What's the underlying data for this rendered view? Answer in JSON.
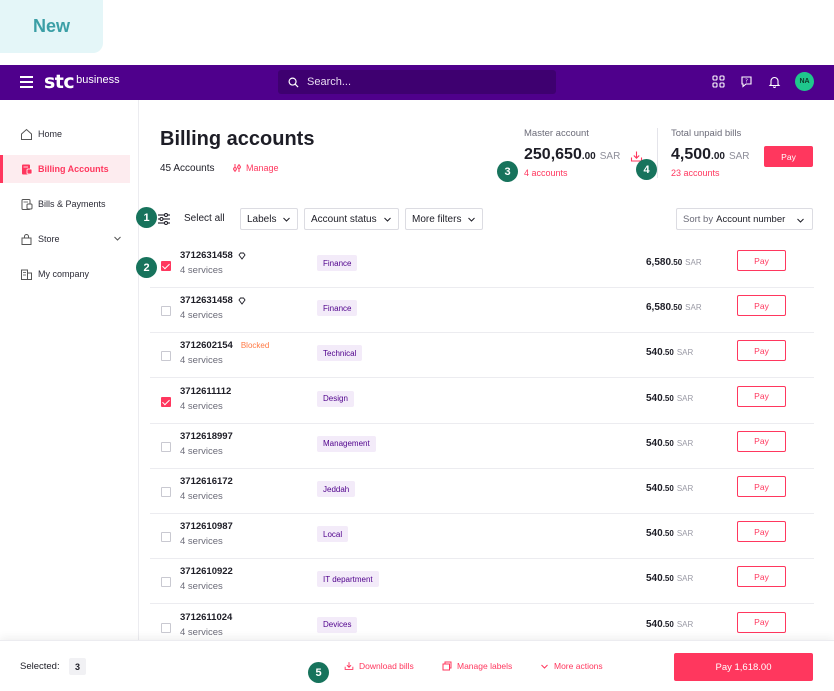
{
  "tag": {
    "label": "New"
  },
  "topbar": {
    "brand": "stc",
    "brand_sub": "business",
    "search_placeholder": "Search...",
    "avatar_initials": "NA",
    "bg_color": "#4f008c"
  },
  "sidebar": {
    "items": [
      {
        "label": "Home",
        "icon": "home-icon"
      },
      {
        "label": "Billing Accounts",
        "icon": "billing-icon",
        "active": true
      },
      {
        "label": "Bills & Payments",
        "icon": "bills-icon"
      },
      {
        "label": "Store",
        "icon": "store-icon"
      },
      {
        "label": "My company",
        "icon": "company-icon"
      }
    ]
  },
  "header": {
    "title": "Billing accounts",
    "count": "45 Accounts",
    "manage": "Manage"
  },
  "master": {
    "label": "Master account",
    "amount_int": "250,650",
    "amount_dec": ".00",
    "currency": "SAR",
    "accounts": "4 accounts"
  },
  "unpaid": {
    "label": "Total unpaid bills",
    "amount_int": "4,500",
    "amount_dec": ".00",
    "currency": "SAR",
    "accounts": "23 accounts",
    "pay": "Pay"
  },
  "filters": {
    "select_all": "Select all",
    "labels": "Labels",
    "status": "Account status",
    "more": "More filters",
    "sort_label": "Sort by",
    "sort_value": "Account number"
  },
  "badges": [
    "1",
    "2",
    "3",
    "4",
    "5"
  ],
  "rows": [
    {
      "account": "3712631458",
      "diamond": true,
      "blocked": "",
      "services": "4 services",
      "label": "Finance",
      "amount_int": "6,580",
      "amount_dec": ".50",
      "currency": "SAR",
      "pay": "Pay",
      "checked": true
    },
    {
      "account": "3712631458",
      "diamond": true,
      "blocked": "",
      "services": "4 services",
      "label": "Finance",
      "amount_int": "6,580",
      "amount_dec": ".50",
      "currency": "SAR",
      "pay": "Pay",
      "checked": false
    },
    {
      "account": "3712602154",
      "diamond": false,
      "blocked": "Blocked",
      "services": "4 services",
      "label": "Technical",
      "amount_int": "540",
      "amount_dec": ".50",
      "currency": "SAR",
      "pay": "Pay",
      "checked": false
    },
    {
      "account": "3712611112",
      "diamond": false,
      "blocked": "",
      "services": "4 services",
      "label": "Design",
      "amount_int": "540",
      "amount_dec": ".50",
      "currency": "SAR",
      "pay": "Pay",
      "checked": true
    },
    {
      "account": "3712618997",
      "diamond": false,
      "blocked": "",
      "services": "4 services",
      "label": "Management",
      "amount_int": "540",
      "amount_dec": ".50",
      "currency": "SAR",
      "pay": "Pay",
      "checked": false
    },
    {
      "account": "3712616172",
      "diamond": false,
      "blocked": "",
      "services": "4 services",
      "label": "Jeddah",
      "amount_int": "540",
      "amount_dec": ".50",
      "currency": "SAR",
      "pay": "Pay",
      "checked": false
    },
    {
      "account": "3712610987",
      "diamond": false,
      "blocked": "",
      "services": "4 services",
      "label": "Local",
      "amount_int": "540",
      "amount_dec": ".50",
      "currency": "SAR",
      "pay": "Pay",
      "checked": false
    },
    {
      "account": "3712610922",
      "diamond": false,
      "blocked": "",
      "services": "4 services",
      "label": "IT department",
      "amount_int": "540",
      "amount_dec": ".50",
      "currency": "SAR",
      "pay": "Pay",
      "checked": false
    },
    {
      "account": "3712611024",
      "diamond": false,
      "blocked": "",
      "services": "4 services",
      "label": "Devices",
      "amount_int": "540",
      "amount_dec": ".50",
      "currency": "SAR",
      "pay": "Pay",
      "checked": false
    }
  ],
  "bottom": {
    "selected_label": "Selected:",
    "selected_count": "3",
    "download": "Download bills",
    "labels": "Manage labels",
    "more": "More actions",
    "pay_total": "Pay 1,618.00"
  },
  "colors": {
    "accent": "#ff375e",
    "brand": "#4f008c",
    "badge": "#17735c",
    "avatar": "#1fc78c"
  }
}
